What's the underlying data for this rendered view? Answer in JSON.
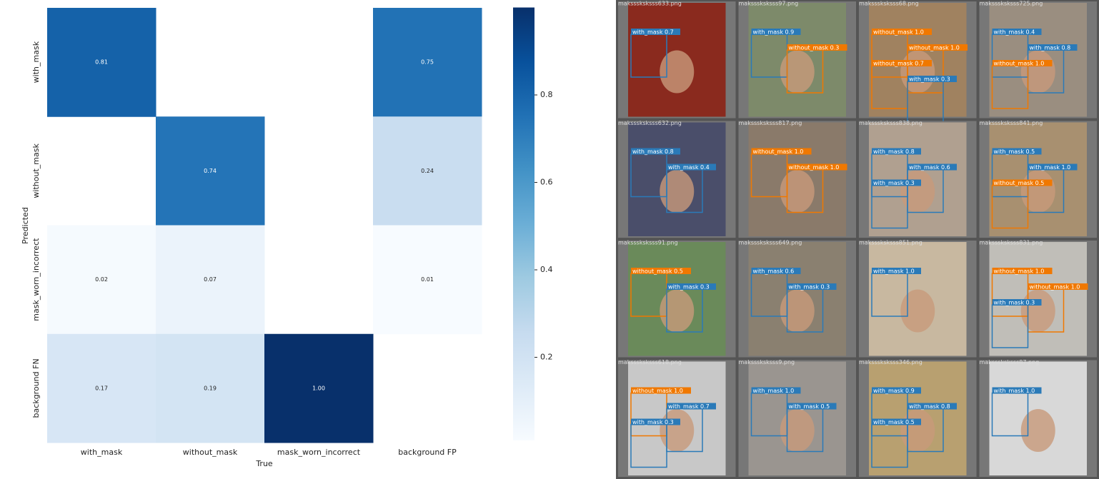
{
  "chart_data": {
    "type": "heatmap",
    "x_label": "True",
    "y_label": "Predicted",
    "x_categories": [
      "with_mask",
      "without_mask",
      "mask_worn_incorrect",
      "background FP"
    ],
    "y_categories": [
      "with_mask",
      "without_mask",
      "mask_worn_incorrect",
      "background FN"
    ],
    "values": [
      [
        0.81,
        null,
        null,
        0.75
      ],
      [
        null,
        0.74,
        null,
        0.24
      ],
      [
        0.02,
        0.07,
        null,
        0.01
      ],
      [
        0.17,
        0.19,
        1.0,
        null
      ]
    ],
    "value_labels": [
      [
        "0.81",
        null,
        null,
        "0.75"
      ],
      [
        null,
        "0.74",
        null,
        "0.24"
      ],
      [
        "0.02",
        "0.07",
        null,
        "0.01"
      ],
      [
        "0.17",
        "0.19",
        "1.00",
        null
      ]
    ],
    "clim": [
      0.01,
      1.0
    ],
    "cticks": [
      0.2,
      0.4,
      0.6,
      0.8
    ],
    "colormap": [
      "#f7fbff",
      "#deebf7",
      "#c6dbef",
      "#9ecae1",
      "#6baed6",
      "#4292c6",
      "#2171b5",
      "#08519c",
      "#08306b"
    ]
  },
  "detections": {
    "tiles": [
      {
        "file": "maksssksksss633.png",
        "labels": [
          "with_mask 0.7"
        ]
      },
      {
        "file": "maksssksksss97.png",
        "labels": [
          "with_mask 0.9",
          "without_mask 0.3"
        ]
      },
      {
        "file": "maksssksksss68.png",
        "labels": [
          "without_mask 1.0",
          "without_mask 1.0",
          "without_mask 0.7",
          "with_mask 0.3"
        ]
      },
      {
        "file": "maksssksksss725.png",
        "labels": [
          "with_mask 0.4",
          "with_mask 0.8",
          "without_mask 1.0"
        ]
      },
      {
        "file": "maksssksksss632.png",
        "labels": [
          "with_mask 0.8",
          "with_mask 0.4"
        ]
      },
      {
        "file": "maksssksksss817.png",
        "labels": [
          "without_mask 1.0",
          "without_mask 1.0"
        ]
      },
      {
        "file": "maksssksksss838.png",
        "labels": [
          "with_mask 0.8",
          "with_mask 0.6",
          "with_mask 0.3"
        ]
      },
      {
        "file": "maksssksksss841.png",
        "labels": [
          "with_mask 0.5",
          "with_mask 1.0",
          "without_mask 0.5"
        ]
      },
      {
        "file": "maksssksksss91.png",
        "labels": [
          "without_mask 0.5",
          "with_mask 0.3"
        ]
      },
      {
        "file": "maksssksksss649.png",
        "labels": [
          "with_mask 0.6",
          "with_mask 0.3"
        ]
      },
      {
        "file": "maksssksksss851.png",
        "labels": [
          "with_mask 1.0"
        ]
      },
      {
        "file": "maksssksksss831.png",
        "labels": [
          "without_mask 1.0",
          "without_mask 1.0",
          "with_mask 0.3"
        ]
      },
      {
        "file": "maksssksksss618.png",
        "labels": [
          "without_mask 1.0",
          "with_mask 0.7",
          "with_mask 0.3"
        ]
      },
      {
        "file": "maksssksksss9.png",
        "labels": [
          "with_mask 1.0",
          "with_mask 0.5"
        ]
      },
      {
        "file": "maksssksksss346.png",
        "labels": [
          "with_mask 0.9",
          "with_mask 0.8",
          "with_mask 0.5"
        ]
      },
      {
        "file": "maksssksksss87.png",
        "labels": [
          "with_mask 1.0"
        ]
      }
    ]
  }
}
